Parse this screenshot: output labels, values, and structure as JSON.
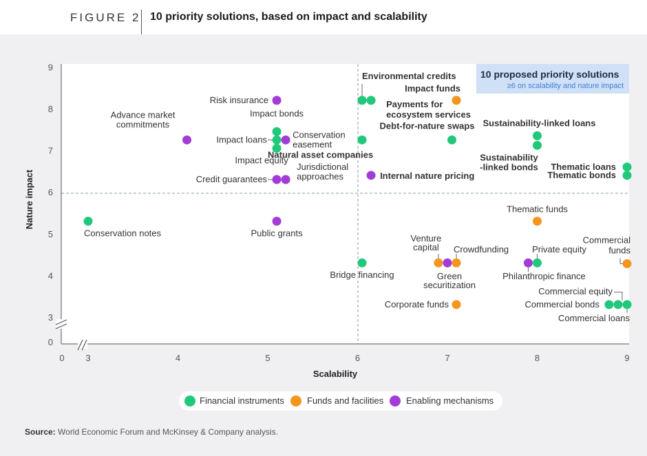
{
  "header": {
    "figure_label": "FIGURE 2",
    "title": "10 priority solutions, based on impact and scalability"
  },
  "colors": {
    "financial": "#20c87a",
    "funds": "#f5951e",
    "enabling": "#a33bd6",
    "highlight_box": "#cfe0f7",
    "highlight_sub": "#3d7fd6"
  },
  "chart_data": {
    "type": "scatter",
    "xlabel": "Scalability",
    "ylabel": "Nature impact",
    "xlim": [
      0,
      9
    ],
    "ylim": [
      0,
      9
    ],
    "x_ticks": [
      "0",
      "3",
      "4",
      "5",
      "6",
      "7",
      "8",
      "9"
    ],
    "y_ticks": [
      "0",
      "3",
      "4",
      "5",
      "6",
      "7",
      "8",
      "9"
    ],
    "axis_breaks": "both axes broken between 0 and 3",
    "threshold_lines": {
      "x": 6,
      "y": 6
    },
    "grid": false,
    "highlight": {
      "title": "10 proposed priority solutions",
      "subtitle": "≥6 on scalability and nature impact"
    },
    "legend": [
      {
        "key": "financial",
        "label": "Financial instruments"
      },
      {
        "key": "funds",
        "label": "Funds and facilities"
      },
      {
        "key": "enabling",
        "label": "Enabling mechanisms"
      }
    ],
    "points": [
      {
        "label": "Conservation notes",
        "x": 3.0,
        "y": 5.3,
        "cat": "financial",
        "bold": false
      },
      {
        "label": "Advance market commitments",
        "x": 4.1,
        "y": 7.25,
        "cat": "enabling",
        "bold": false
      },
      {
        "label": "Risk insurance",
        "x": 5.1,
        "y": 8.2,
        "cat": "enabling",
        "bold": false
      },
      {
        "label": "Impact bonds",
        "x": 5.1,
        "y": 7.45,
        "cat": "financial",
        "bold": false
      },
      {
        "label": "Impact loans",
        "x": 5.1,
        "y": 7.25,
        "cat": "financial",
        "bold": false
      },
      {
        "label": "Conservation easement",
        "x": 5.2,
        "y": 7.25,
        "cat": "enabling",
        "bold": false
      },
      {
        "label": "Impact equity",
        "x": 5.1,
        "y": 7.05,
        "cat": "financial",
        "bold": false
      },
      {
        "label": "Credit guarantees",
        "x": 5.1,
        "y": 6.3,
        "cat": "enabling",
        "bold": false
      },
      {
        "label": "Jurisdictional approaches",
        "x": 5.2,
        "y": 6.3,
        "cat": "enabling",
        "bold": false
      },
      {
        "label": "Public grants",
        "x": 5.1,
        "y": 5.3,
        "cat": "enabling",
        "bold": false
      },
      {
        "label": "Bridge financing",
        "x": 6.05,
        "y": 4.3,
        "cat": "financial",
        "bold": false
      },
      {
        "label": "Environmental credits",
        "x": 6.05,
        "y": 8.2,
        "cat": "financial",
        "bold": true
      },
      {
        "label": "Payments for ecosystem services",
        "x": 6.15,
        "y": 8.2,
        "cat": "financial",
        "bold": true
      },
      {
        "label": "Impact funds",
        "x": 7.1,
        "y": 8.2,
        "cat": "funds",
        "bold": true
      },
      {
        "label": "Debt-for-nature swaps",
        "x": 7.05,
        "y": 7.25,
        "cat": "financial",
        "bold": true
      },
      {
        "label": "Natural asset companies",
        "x": 6.05,
        "y": 7.25,
        "cat": "financial",
        "bold": true
      },
      {
        "label": "Internal nature pricing",
        "x": 6.15,
        "y": 6.4,
        "cat": "enabling",
        "bold": true
      },
      {
        "label": "Sustainability-linked loans",
        "x": 8.0,
        "y": 7.35,
        "cat": "financial",
        "bold": true
      },
      {
        "label": "Sustainability -linked bonds",
        "x": 8.0,
        "y": 7.12,
        "cat": "financial",
        "bold": true
      },
      {
        "label": "Thematic loans",
        "x": 9.0,
        "y": 6.6,
        "cat": "financial",
        "bold": true
      },
      {
        "label": "Thematic bonds",
        "x": 9.0,
        "y": 6.4,
        "cat": "financial",
        "bold": true
      },
      {
        "label": "Thematic funds",
        "x": 8.0,
        "y": 5.3,
        "cat": "funds",
        "bold": false
      },
      {
        "label": "Venture capital",
        "x": 6.9,
        "y": 4.3,
        "cat": "funds",
        "bold": false
      },
      {
        "label": "Green securitization",
        "x": 7.0,
        "y": 4.3,
        "cat": "enabling",
        "bold": false
      },
      {
        "label": "Crowdfunding",
        "x": 7.1,
        "y": 4.3,
        "cat": "funds",
        "bold": false
      },
      {
        "label": "Philanthropic finance",
        "x": 7.9,
        "y": 4.3,
        "cat": "enabling",
        "bold": false
      },
      {
        "label": "Private equity",
        "x": 8.0,
        "y": 4.3,
        "cat": "financial",
        "bold": false
      },
      {
        "label": "Commercial funds",
        "x": 9.0,
        "y": 4.28,
        "cat": "funds",
        "bold": false
      },
      {
        "label": "Corporate funds",
        "x": 7.1,
        "y": 3.3,
        "cat": "funds",
        "bold": false
      },
      {
        "label": "Commercial equity",
        "x": 8.9,
        "y": 3.3,
        "cat": "financial",
        "bold": false
      },
      {
        "label": "Commercial bonds",
        "x": 8.8,
        "y": 3.3,
        "cat": "financial",
        "bold": false
      },
      {
        "label": "Commercial loans",
        "x": 9.0,
        "y": 3.3,
        "cat": "financial",
        "bold": false
      }
    ]
  },
  "source": {
    "prefix": "Source:",
    "text": "World Economic Forum and McKinsey & Company analysis."
  }
}
